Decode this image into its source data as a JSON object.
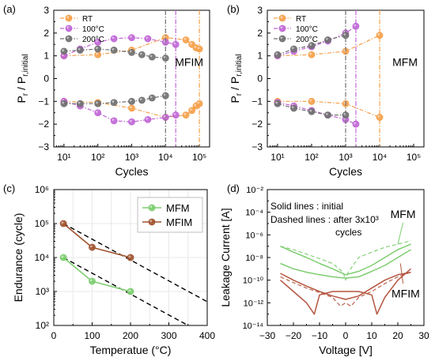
{
  "chart_data": [
    {
      "panel": "(a)",
      "type": "line",
      "annotation": "MFIM",
      "xlabel": "Cycles",
      "ylabel": "P_r / P_r,initial",
      "x_scale": "log",
      "xlim": [
        5,
        200000
      ],
      "ylim": [
        -3,
        3
      ],
      "x_ticks": [
        10,
        100,
        1000,
        10000,
        100000
      ],
      "x_tick_labels": [
        "10¹",
        "10²",
        "10³",
        "10⁴",
        "10⁵"
      ],
      "y_ticks": [
        -3,
        -2,
        -1,
        0,
        1,
        2,
        3
      ],
      "legend_position": "top-left",
      "series": [
        {
          "name": "RT",
          "color": "#f5a04a",
          "x": [
            10,
            100,
            1000,
            10000,
            40000,
            60000,
            80000,
            100000
          ],
          "pos": [
            1.0,
            1.05,
            1.25,
            1.8,
            1.7,
            1.5,
            1.35,
            1.3
          ],
          "neg": [
            -1.0,
            -1.05,
            -1.3,
            -1.7,
            -1.6,
            -1.4,
            -1.2,
            -1.1
          ],
          "failure_x": 100000
        },
        {
          "name": "100°C",
          "color": "#c066d6",
          "x": [
            10,
            30,
            100,
            300,
            1000,
            3000,
            10000,
            20000
          ],
          "pos": [
            1.0,
            1.3,
            1.6,
            1.75,
            1.8,
            1.75,
            1.6,
            1.5
          ],
          "neg": [
            -1.0,
            -1.2,
            -1.5,
            -1.85,
            -1.9,
            -1.8,
            -1.7,
            -1.6
          ],
          "failure_x": 20000
        },
        {
          "name": "200°C",
          "color": "#707070",
          "x": [
            10,
            30,
            100,
            300,
            1000,
            2000,
            4000,
            10000
          ],
          "pos": [
            1.2,
            1.25,
            1.3,
            1.25,
            1.15,
            1.05,
            0.95,
            0.9
          ],
          "neg": [
            -1.1,
            -1.1,
            -1.1,
            -1.05,
            -1.0,
            -0.95,
            -0.85,
            -0.75
          ],
          "failure_x": 10000
        }
      ]
    },
    {
      "panel": "(b)",
      "type": "line",
      "annotation": "MFM",
      "xlabel": "Cycles",
      "ylabel": "P_r / P_r,initial",
      "x_scale": "log",
      "xlim": [
        5,
        200000
      ],
      "ylim": [
        -3,
        3
      ],
      "x_ticks": [
        10,
        100,
        1000,
        10000,
        100000
      ],
      "x_tick_labels": [
        "10¹",
        "10²",
        "10³",
        "10⁴",
        "10⁵"
      ],
      "y_ticks": [
        -3,
        -2,
        -1,
        0,
        1,
        2,
        3
      ],
      "legend_position": "top-left",
      "series": [
        {
          "name": "RT",
          "color": "#f5a04a",
          "x": [
            10,
            100,
            1000,
            10000
          ],
          "pos": [
            1.0,
            1.05,
            1.2,
            1.9
          ],
          "neg": [
            -1.0,
            -1.0,
            -1.1,
            -1.7
          ],
          "failure_x": 10000
        },
        {
          "name": "100°C",
          "color": "#c066d6",
          "x": [
            10,
            30,
            100,
            300,
            1000,
            2000
          ],
          "pos": [
            1.0,
            1.2,
            1.4,
            1.65,
            2.0,
            2.3
          ],
          "neg": [
            -1.05,
            -1.2,
            -1.4,
            -1.6,
            -1.8,
            -2.0
          ],
          "failure_x": 2000
        },
        {
          "name": "200°C",
          "color": "#707070",
          "x": [
            10,
            30,
            100,
            300,
            1000
          ],
          "pos": [
            1.05,
            1.3,
            1.45,
            1.7,
            1.9
          ],
          "neg": [
            -1.1,
            -1.3,
            -1.45,
            -1.6,
            -1.6
          ],
          "failure_x": 1000
        }
      ]
    },
    {
      "panel": "(c)",
      "type": "line",
      "xlabel": "Temperatue (°C)",
      "ylabel": "Endurance (cycle)",
      "y_scale": "log",
      "xlim": [
        0,
        400
      ],
      "ylim": [
        100,
        1000000
      ],
      "x_ticks": [
        0,
        100,
        200,
        300,
        400
      ],
      "y_ticks": [
        100,
        1000,
        10000,
        100000,
        1000000
      ],
      "y_tick_labels": [
        "10²",
        "10³",
        "10⁴",
        "10⁵",
        "10⁶"
      ],
      "grid": true,
      "legend_position": "top-right",
      "series": [
        {
          "name": "MFM",
          "color": "#7ccd6e",
          "x": [
            25,
            100,
            200
          ],
          "y": [
            10000,
            2000,
            1000
          ]
        },
        {
          "name": "MFIM",
          "color": "#a0522d",
          "x": [
            25,
            100,
            200
          ],
          "y": [
            100000,
            20000,
            10000
          ]
        }
      ],
      "extrapolation_lines": [
        {
          "x": [
            25,
            400
          ],
          "y": [
            100000,
            500
          ]
        },
        {
          "x": [
            25,
            350
          ],
          "y": [
            10000,
            100
          ]
        }
      ]
    },
    {
      "panel": "(d)",
      "type": "line",
      "xlabel": "Voltage [V]",
      "ylabel": "Leakage Current [A]",
      "y_scale": "log",
      "xlim": [
        -30,
        30
      ],
      "ylim": [
        1e-14,
        0.01
      ],
      "x_ticks": [
        -30,
        -20,
        -10,
        0,
        10,
        20,
        30
      ],
      "y_ticks": [
        1e-14,
        1e-12,
        1e-10,
        1e-08,
        1e-06,
        0.0001,
        0.01
      ],
      "y_tick_labels": [
        "10⁻¹⁴",
        "10⁻¹²",
        "10⁻¹⁰",
        "10⁻⁸",
        "10⁻⁶",
        "10⁻⁴",
        "10⁻²"
      ],
      "annotations": [
        "Solid lines : initial",
        "Dashed lines : after 3x10³",
        "cycles",
        "MFM",
        "MFIM"
      ],
      "series": [
        {
          "name": "MFM",
          "line": "solid",
          "color": "#7ccd6e",
          "x": [
            -25,
            -20,
            -15,
            -10,
            -5,
            0,
            5,
            10,
            15,
            20,
            25
          ],
          "y": [
            1e-07,
            3e-08,
            1e-08,
            3e-09,
            1e-09,
            3e-10,
            6e-10,
            2e-09,
            1e-08,
            5e-08,
            1.5e-07
          ]
        },
        {
          "name": "MFM",
          "line": "solid",
          "color": "#7ccd6e",
          "x": [
            -25,
            -20,
            -15,
            -10,
            -5,
            0,
            5,
            10,
            15,
            20,
            25
          ],
          "y": [
            3e-09,
            1e-09,
            5e-10,
            3e-10,
            2e-10,
            1.5e-10,
            2e-10,
            6e-10,
            2e-09,
            1e-08,
            5e-08
          ]
        },
        {
          "name": "MFM",
          "line": "dashed",
          "color": "#7ccd6e",
          "x": [
            -25,
            -20,
            -15,
            -10,
            -5,
            -1,
            0,
            1,
            5,
            10,
            15,
            20,
            25
          ],
          "y": [
            1e-07,
            5e-08,
            2e-08,
            8e-09,
            3e-09,
            5e-10,
            1e-10,
            5e-10,
            1e-08,
            3e-08,
            8e-08,
            1.5e-07,
            3e-07
          ]
        },
        {
          "name": "MFIM",
          "line": "solid",
          "color": "#b4553f",
          "x": [
            -25,
            -20,
            -15,
            -12,
            -10,
            -5,
            0,
            5,
            10,
            12,
            15,
            20,
            25
          ],
          "y": [
            1e-10,
            1e-11,
            1e-12,
            1e-13,
            5e-12,
            1e-11,
            1e-11,
            1e-11,
            5e-12,
            1e-13,
            3e-12,
            1e-10,
            1e-09
          ]
        },
        {
          "name": "MFIM",
          "line": "solid",
          "color": "#b4553f",
          "x": [
            -25,
            -20,
            -15,
            -10,
            -5,
            0,
            5,
            10,
            15,
            20,
            25
          ],
          "y": [
            4e-10,
            1e-10,
            3e-11,
            1e-11,
            4e-12,
            2e-12,
            4e-12,
            2e-11,
            1e-10,
            3e-10,
            5e-10
          ]
        },
        {
          "name": "MFIM",
          "line": "dashed",
          "color": "#b4553f",
          "x": [
            -25,
            -20,
            -15,
            -10,
            -5,
            -2,
            0,
            2,
            5,
            10,
            15,
            20,
            25
          ],
          "y": [
            2e-10,
            6e-11,
            2e-11,
            8e-12,
            3e-12,
            5e-13,
            1e-12,
            5e-13,
            3e-12,
            1e-11,
            5e-11,
            2e-10,
            5e-10
          ]
        }
      ]
    }
  ]
}
